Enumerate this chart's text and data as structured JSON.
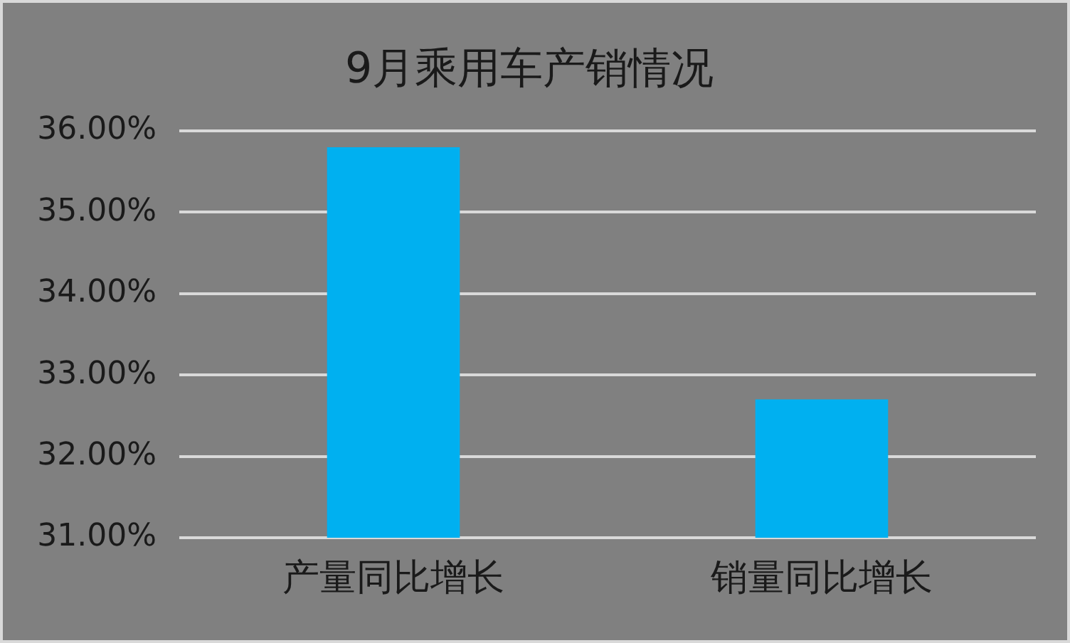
{
  "chart_data": {
    "type": "bar",
    "title": "9月乘用车产销情况",
    "categories": [
      "产量同比增长",
      "销量同比增长"
    ],
    "values": [
      35.8,
      32.7
    ],
    "color": "#00b0f0",
    "ylim": [
      31,
      36
    ],
    "yticks": [
      {
        "value": 31,
        "label": "31.00%"
      },
      {
        "value": 32,
        "label": "32.00%"
      },
      {
        "value": 33,
        "label": "33.00%"
      },
      {
        "value": 34,
        "label": "34.00%"
      },
      {
        "value": 35,
        "label": "35.00%"
      },
      {
        "value": 36,
        "label": "36.00%"
      }
    ],
    "grid": "y"
  }
}
